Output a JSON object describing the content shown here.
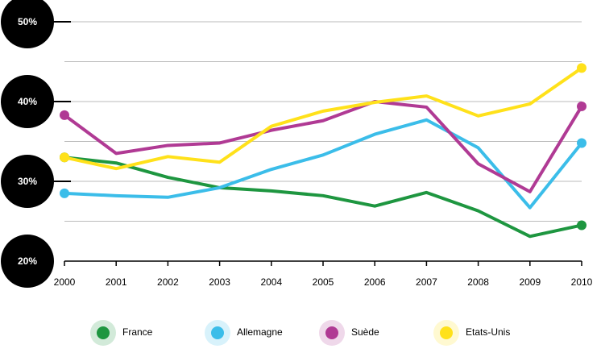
{
  "chart_data": {
    "type": "line",
    "x": [
      2000,
      2001,
      2002,
      2003,
      2004,
      2005,
      2006,
      2007,
      2008,
      2009,
      2010
    ],
    "xlim": [
      2000,
      2010
    ],
    "xticks": [
      2000,
      2001,
      2002,
      2003,
      2004,
      2005,
      2006,
      2007,
      2008,
      2009,
      2010
    ],
    "ylim": [
      20,
      50
    ],
    "yticks": [
      {
        "value": 20,
        "label": "20%"
      },
      {
        "value": 30,
        "label": "30%"
      },
      {
        "value": 40,
        "label": "40%"
      },
      {
        "value": 50,
        "label": "50%"
      }
    ],
    "minor_gridlines": [
      25,
      35,
      45
    ],
    "grid": true,
    "series": [
      {
        "name": "France",
        "color": "#1e9640",
        "values": [
          33.0,
          32.3,
          30.5,
          29.2,
          28.8,
          28.2,
          26.9,
          28.6,
          26.3,
          23.1,
          24.5
        ]
      },
      {
        "name": "Allemagne",
        "color": "#3bbde9",
        "values": [
          28.5,
          28.2,
          28.0,
          29.2,
          31.5,
          33.3,
          35.9,
          37.7,
          34.2,
          26.7,
          34.8
        ]
      },
      {
        "name": "Suède",
        "color": "#b03a94",
        "values": [
          38.3,
          33.5,
          34.5,
          34.8,
          36.4,
          37.6,
          40.0,
          39.3,
          32.2,
          28.7,
          39.4
        ]
      },
      {
        "name": "Etats-Unis",
        "color": "#ffe11a",
        "values": [
          33.0,
          31.6,
          33.1,
          32.4,
          36.9,
          38.8,
          39.9,
          40.7,
          38.2,
          39.7,
          44.2
        ]
      }
    ]
  }
}
